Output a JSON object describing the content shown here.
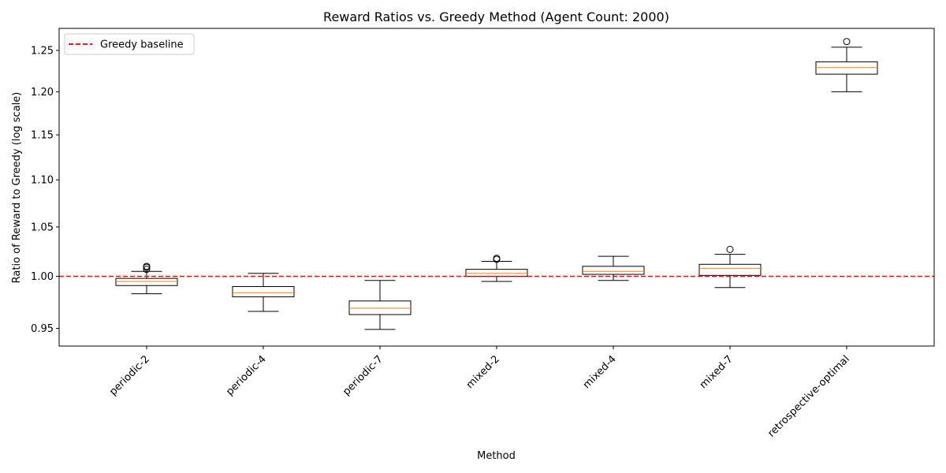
{
  "chart_data": {
    "type": "box",
    "title": "Reward Ratios vs. Greedy Method (Agent Count: 2000)",
    "xlabel": "Method",
    "ylabel": "Ratio of Reward to Greedy (log scale)",
    "yscale": "log",
    "ylim": [
      0.9335,
      1.2775
    ],
    "yticks": [
      0.95,
      1.0,
      1.05,
      1.1,
      1.15,
      1.2,
      1.25
    ],
    "ytick_labels": [
      "0.95",
      "1.00",
      "1.05",
      "1.10",
      "1.15",
      "1.20",
      "1.25"
    ],
    "categories": [
      "periodic-2",
      "periodic-4",
      "periodic-7",
      "mixed-2",
      "mixed-4",
      "mixed-7",
      "retrospective-optimal"
    ],
    "boxes": [
      {
        "label": "periodic-2",
        "whislo": 0.983,
        "q1": 0.991,
        "med": 0.995,
        "q3": 0.998,
        "whishi": 1.005,
        "fliers": [
          1.007,
          1.009,
          1.01
        ]
      },
      {
        "label": "periodic-4",
        "whislo": 0.966,
        "q1": 0.98,
        "med": 0.984,
        "q3": 0.99,
        "whishi": 1.003,
        "fliers": []
      },
      {
        "label": "periodic-7",
        "whislo": 0.949,
        "q1": 0.963,
        "med": 0.969,
        "q3": 0.976,
        "whishi": 0.996,
        "fliers": []
      },
      {
        "label": "mixed-2",
        "whislo": 0.995,
        "q1": 1.0,
        "med": 1.003,
        "q3": 1.007,
        "whishi": 1.015,
        "fliers": [
          1.017,
          1.018
        ]
      },
      {
        "label": "mixed-4",
        "whislo": 0.996,
        "q1": 1.002,
        "med": 1.005,
        "q3": 1.01,
        "whishi": 1.02,
        "fliers": []
      },
      {
        "label": "mixed-7",
        "whislo": 0.989,
        "q1": 1.001,
        "med": 1.008,
        "q3": 1.012,
        "whishi": 1.022,
        "fliers": [
          1.027
        ]
      },
      {
        "label": "retrospective-optimal",
        "whislo": 1.2,
        "q1": 1.221,
        "med": 1.229,
        "q3": 1.236,
        "whishi": 1.254,
        "fliers": [
          1.261
        ]
      }
    ],
    "reference_line": {
      "value": 1.0,
      "label": "Greedy baseline",
      "color": "#e41a1c",
      "style": "dashed"
    },
    "legend": {
      "position": "top-left",
      "entries": [
        "Greedy baseline"
      ]
    },
    "grid": false,
    "colors": {
      "box": "#000000",
      "median": "#ff7f0e",
      "baseline": "#e41a1c"
    }
  }
}
